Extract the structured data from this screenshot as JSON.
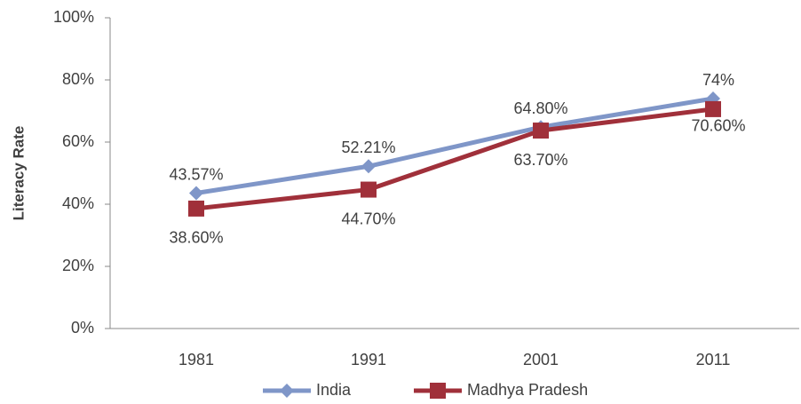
{
  "chart_data": {
    "type": "line",
    "ylabel": "Literacy Rate",
    "categories": [
      "1981",
      "1991",
      "2001",
      "2011"
    ],
    "series": [
      {
        "name": "India",
        "color": "#7f96c8",
        "marker": "diamond",
        "values": [
          43.57,
          52.21,
          64.8,
          74
        ],
        "value_labels": [
          "43.57%",
          "52.21%",
          "64.80%",
          "74%"
        ]
      },
      {
        "name": "Madhya Pradesh",
        "color": "#a0303a",
        "marker": "square",
        "values": [
          38.6,
          44.7,
          63.7,
          70.6
        ],
        "value_labels": [
          "38.60%",
          "44.70%",
          "63.70%",
          "70.60%"
        ]
      }
    ],
    "ylim": [
      0,
      100
    ],
    "yticks": [
      {
        "value": 0,
        "label": "0%"
      },
      {
        "value": 20,
        "label": "20%"
      },
      {
        "value": 40,
        "label": "40%"
      },
      {
        "value": 60,
        "label": "60%"
      },
      {
        "value": 80,
        "label": "80%"
      },
      {
        "value": 100,
        "label": "100%"
      }
    ],
    "grid": false,
    "legend": "bottom"
  }
}
